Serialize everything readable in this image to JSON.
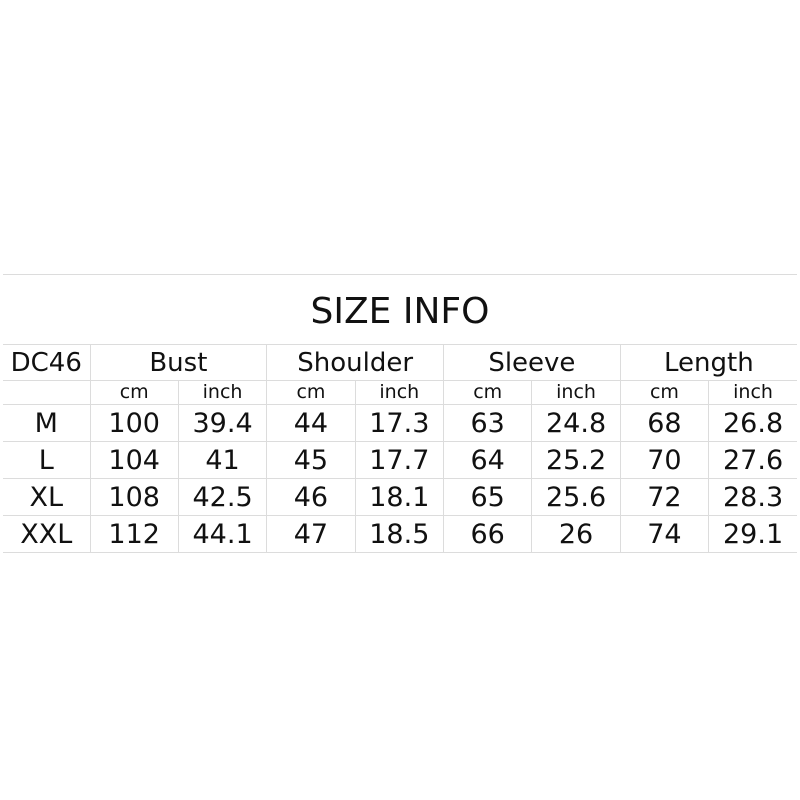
{
  "title": "SIZE  INFO",
  "model": "DC46",
  "groups": [
    "Bust",
    "Shoulder",
    "Sleeve",
    "Length"
  ],
  "units": [
    "cm",
    "inch"
  ],
  "rows": [
    {
      "size": "M",
      "values": [
        "100",
        "39.4",
        "44",
        "17.3",
        "63",
        "24.8",
        "68",
        "26.8"
      ]
    },
    {
      "size": "L",
      "values": [
        "104",
        "41",
        "45",
        "17.7",
        "64",
        "25.2",
        "70",
        "27.6"
      ]
    },
    {
      "size": "XL",
      "values": [
        "108",
        "42.5",
        "46",
        "18.1",
        "65",
        "25.6",
        "72",
        "28.3"
      ]
    },
    {
      "size": "XXL",
      "values": [
        "112",
        "44.1",
        "47",
        "18.5",
        "66",
        "26",
        "74",
        "29.1"
      ]
    }
  ],
  "colors": {
    "grid": "#dcdcdc",
    "text": "#111111"
  }
}
